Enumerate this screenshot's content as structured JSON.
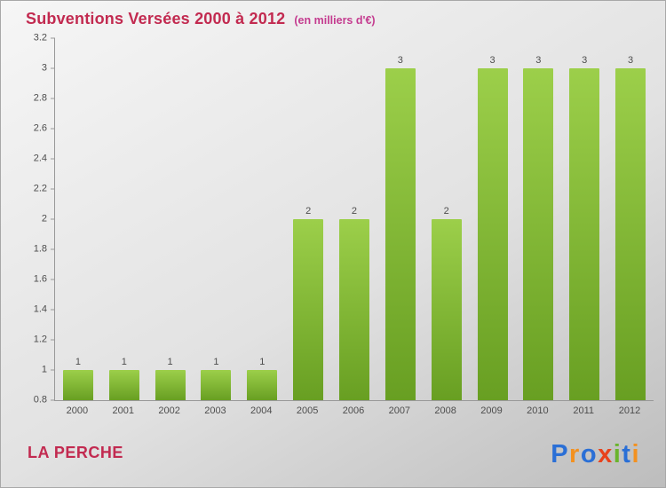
{
  "chart_data": {
    "type": "bar",
    "title": "Subventions Versées 2000 à 2012",
    "subtitle": "(en milliers d'€)",
    "categories": [
      "2000",
      "2001",
      "2002",
      "2003",
      "2004",
      "2005",
      "2006",
      "2007",
      "2008",
      "2009",
      "2010",
      "2011",
      "2012"
    ],
    "values": [
      1,
      1,
      1,
      1,
      1,
      2,
      2,
      3,
      2,
      3,
      3,
      3,
      3
    ],
    "bar_labels": [
      1,
      1,
      1,
      1,
      1,
      2,
      2,
      3,
      2,
      3,
      3,
      3,
      3
    ],
    "xlabel": "",
    "ylabel": "",
    "ylim": [
      0.8,
      3.2
    ],
    "ytick_step": 0.2,
    "ytick_labels": [
      "0.8",
      "1",
      "1.2",
      "1.4",
      "1.6",
      "1.8",
      "2",
      "2.2",
      "2.4",
      "2.6",
      "2.8",
      "3",
      "3.2"
    ],
    "grid": false,
    "legend": false,
    "bar_color": "#84bb35"
  },
  "footer": {
    "entity": "LA PERCHE"
  },
  "logo": {
    "name": "Proxiti",
    "letters": [
      {
        "ch": "P",
        "color": "#2a6fd6"
      },
      {
        "ch": "r",
        "color": "#f39120"
      },
      {
        "ch": "o",
        "color": "#2a6fd6"
      },
      {
        "ch": "x",
        "color": "#e8421c"
      },
      {
        "ch": "i",
        "color": "#6ab42d"
      },
      {
        "ch": "t",
        "color": "#2a6fd6"
      },
      {
        "ch": "i",
        "color": "#f39120"
      }
    ]
  },
  "colors": {
    "title": "#c22a50",
    "subtitle": "#c43b8f",
    "bar_top": "#9ccf4a",
    "bar_bottom": "#689f22",
    "axis": "#999999",
    "tick_label": "#4d4d4d",
    "value_label": "#4d4d4d",
    "bg_top": "#f6f6f6",
    "bg_mid": "#e2e2e2",
    "bg_bottom": "#bdbdbd"
  }
}
